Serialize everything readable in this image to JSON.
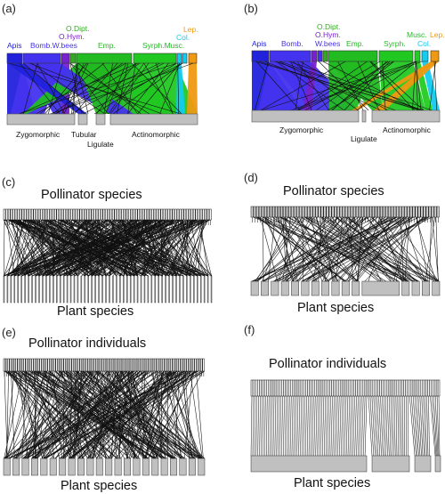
{
  "colors": {
    "apis": "#2222dd",
    "bomb": "#4433ee",
    "ohym": "#7722cc",
    "odipt": "#33aa22",
    "emp": "#22bb22",
    "syrph": "#22c822",
    "musc": "#22cc22",
    "col": "#11ccee",
    "lep": "#ee9911",
    "plant": "#c0c0c0",
    "line": "#111111"
  },
  "panels": {
    "a": {
      "label": "(a)",
      "pollinators": [
        "Apis",
        "Bomb.",
        "W.bees",
        "O.Hym.",
        "O.Dipt.",
        "Emp.",
        "Syrph.",
        "Musc.",
        "Col.",
        "Lep."
      ],
      "plants": [
        "Zygomorphic",
        "Tubular",
        "Ligulate",
        "Actinomorphic"
      ]
    },
    "b": {
      "label": "(b)",
      "pollinators": [
        "Apis",
        "Bomb.",
        "O.Hym.",
        "W.bees",
        "O.Dipt.",
        "Emp.",
        "Syrph.",
        "Musc.",
        "Col.",
        "Lep."
      ],
      "plants": [
        "Zygomorphic",
        "Ligulate",
        "Actinomorphic"
      ]
    },
    "c": {
      "label": "(c)",
      "top": "Pollinator species",
      "bottom": "Plant species"
    },
    "d": {
      "label": "(d)",
      "top": "Pollinator species",
      "bottom": "Plant species"
    },
    "e": {
      "label": "(e)",
      "top": "Pollinator individuals",
      "bottom": "Plant species"
    },
    "f": {
      "label": "(f)",
      "top": "Pollinator individuals",
      "bottom": "Plant species"
    }
  }
}
